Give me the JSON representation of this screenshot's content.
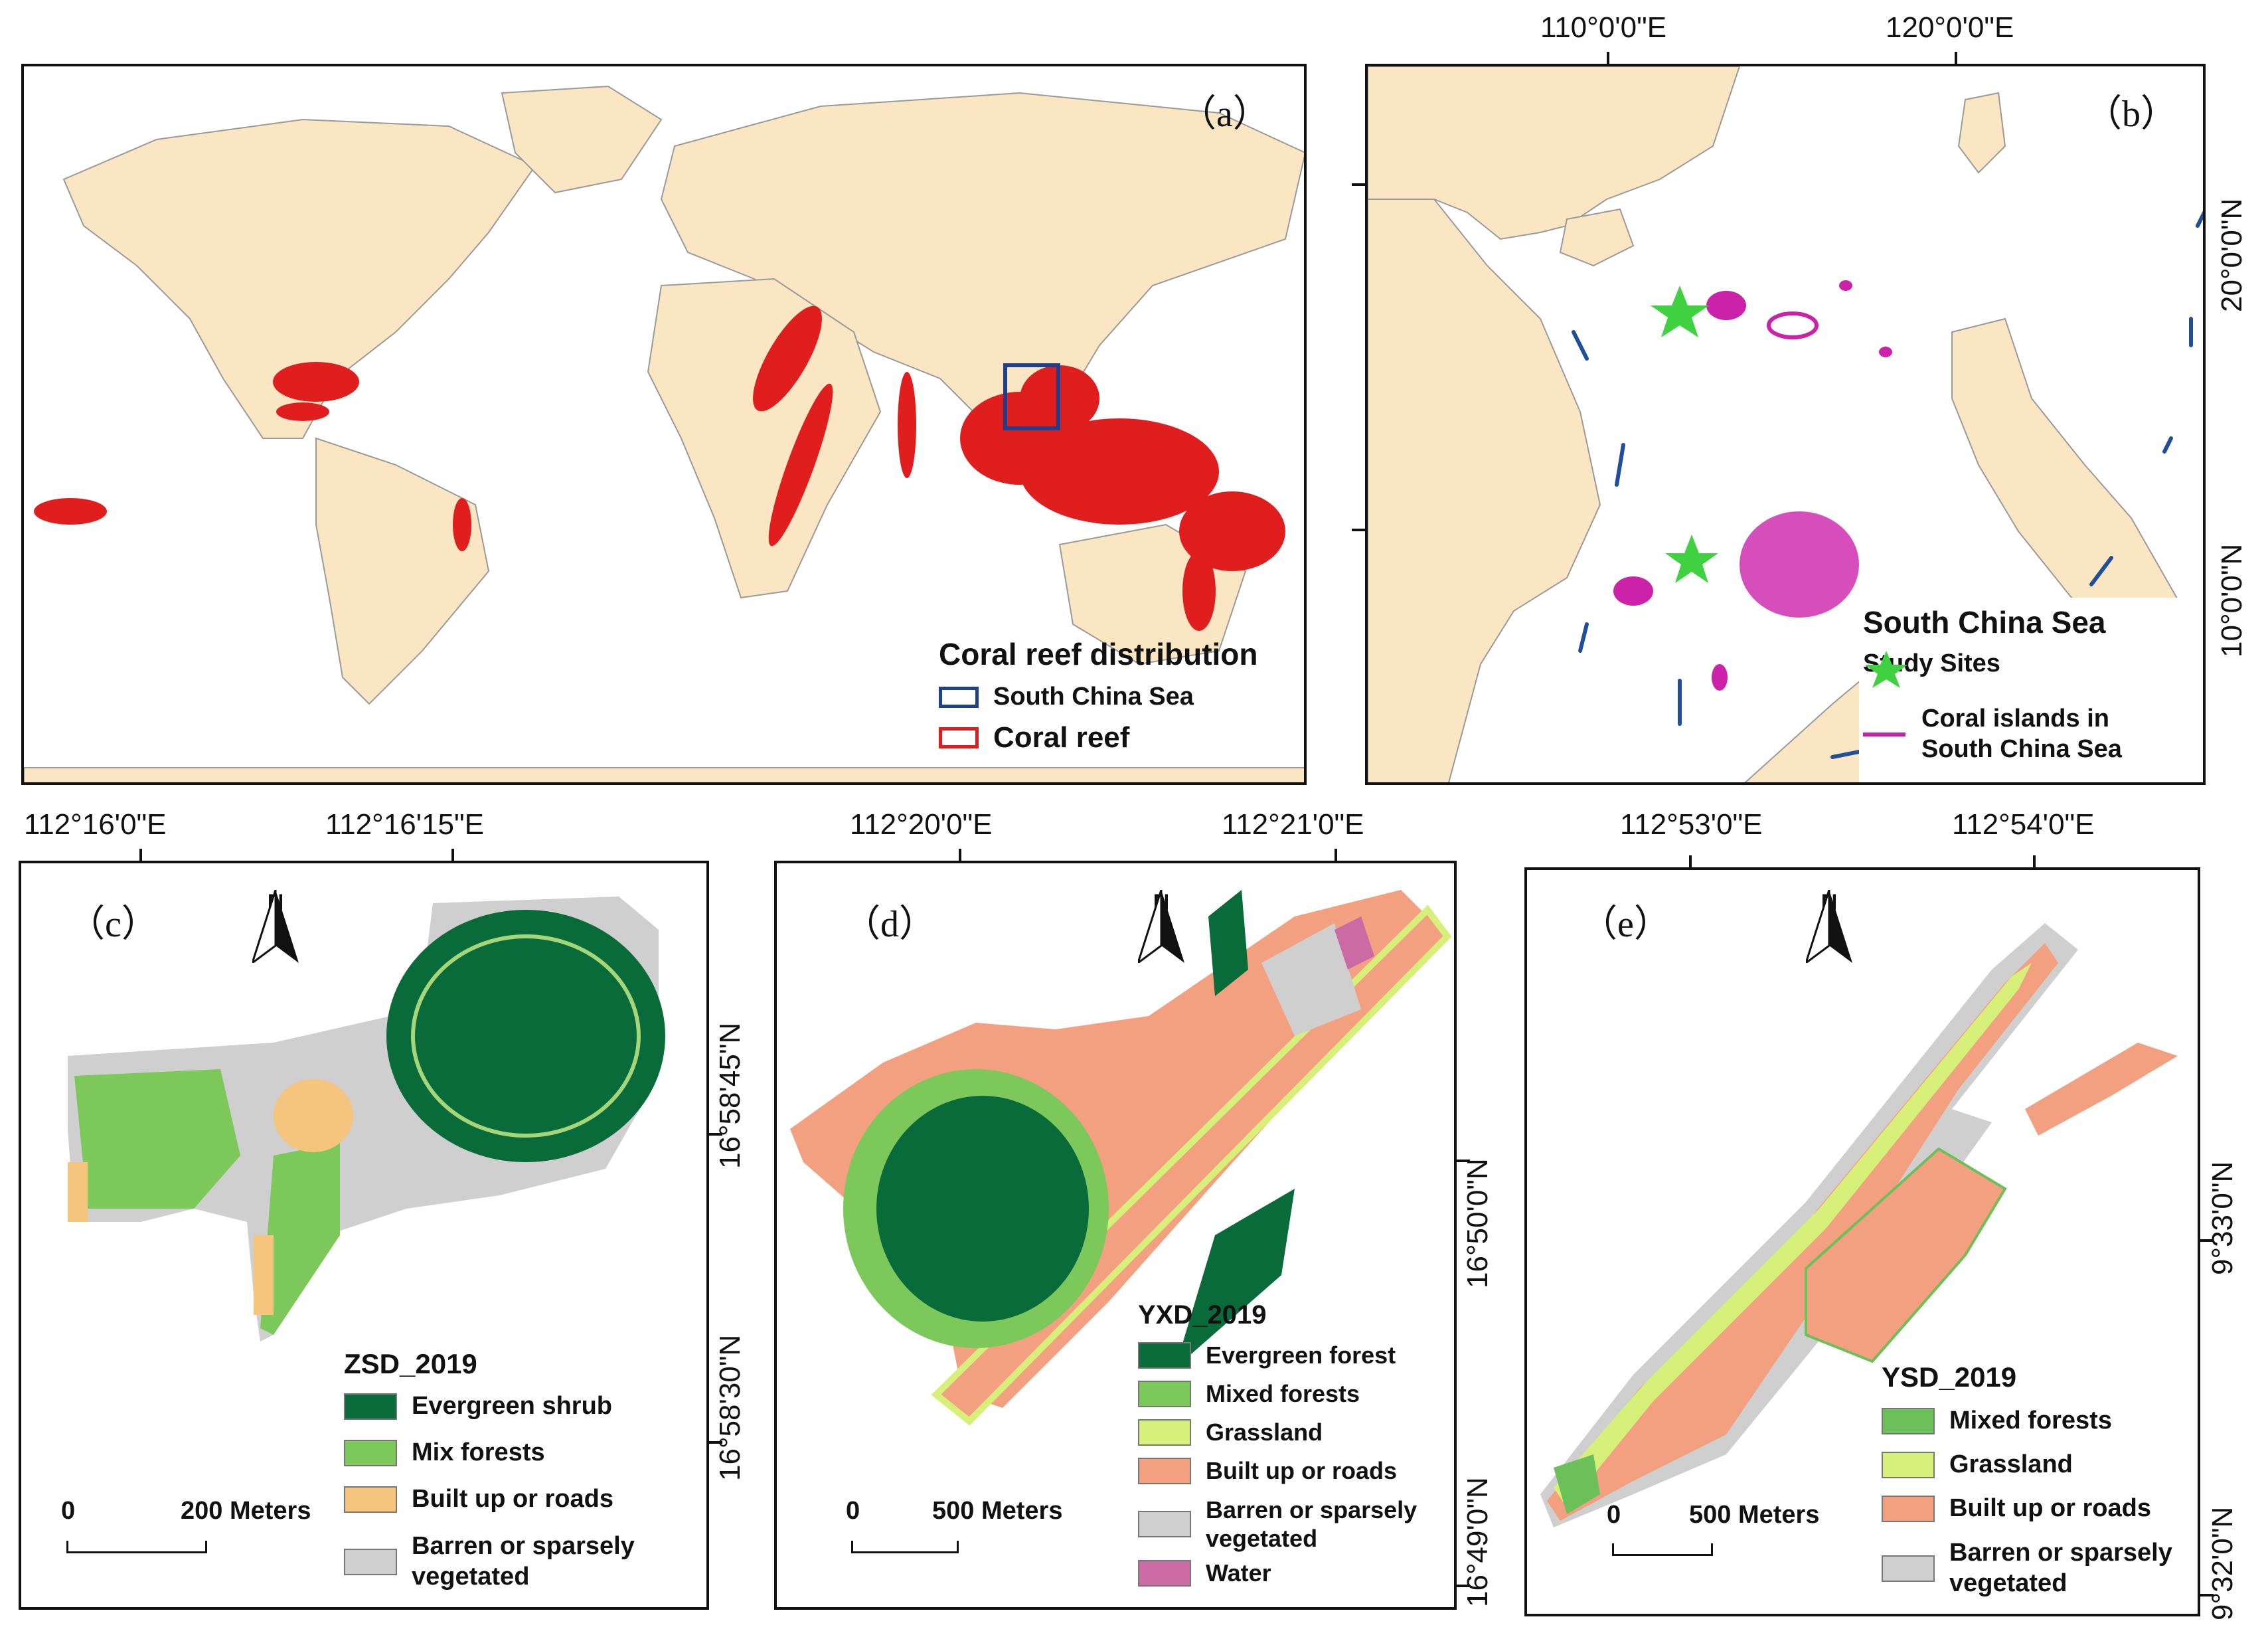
{
  "panel_a": {
    "label": "（a）",
    "legend": {
      "title": "Coral reef distribution",
      "items": [
        {
          "label": "South China Sea",
          "color": "#1f3f8f"
        },
        {
          "label": "Coral reef",
          "color": "#e01e1e"
        }
      ]
    }
  },
  "panel_b": {
    "label": "（b）",
    "top_lon": [
      "110°0'0\"E",
      "120°0'0\"E"
    ],
    "right_lat": [
      "20°0'0\"N",
      "10°0'0\"N"
    ],
    "legend": {
      "title": "South China Sea",
      "items": [
        {
          "label": "Study Sites",
          "color": "#3fd13f",
          "icon": "star-icon"
        },
        {
          "label": "Coral islands in",
          "label2": "South China Sea",
          "color": "#cc22aa"
        }
      ]
    }
  },
  "panel_c": {
    "label": "（c）",
    "top_lon": [
      "112°16'0\"E",
      "112°16'15\"E"
    ],
    "right_lat": [
      "16°58'45\"N",
      "16°58'30\"N"
    ],
    "north": "N",
    "scale": {
      "zero": "0",
      "length": "200 Meters"
    },
    "legend": {
      "title": "ZSD_2019",
      "items": [
        {
          "label": "Evergreen shrub",
          "color": "#0a6b3a"
        },
        {
          "label": "Mix forests",
          "color": "#7dc85a"
        },
        {
          "label": "Built up or roads",
          "color": "#f5c47d"
        },
        {
          "label": "Barren or sparsely",
          "label2": "vegetated",
          "color": "#cfcfcf"
        }
      ]
    }
  },
  "panel_d": {
    "label": "（d）",
    "top_lon": [
      "112°20'0\"E",
      "112°21'0\"E"
    ],
    "right_lat": [
      "16°50'0\"N",
      "16°49'0\"N"
    ],
    "north": "N",
    "scale": {
      "zero": "0",
      "length": "500 Meters"
    },
    "legend": {
      "title": "YXD_2019",
      "items": [
        {
          "label": "Evergreen forest",
          "color": "#0a6b3a"
        },
        {
          "label": "Mixed forests",
          "color": "#7dc85a"
        },
        {
          "label": "Grassland",
          "color": "#d7f07a"
        },
        {
          "label": "Built up or roads",
          "color": "#f2a07f"
        },
        {
          "label": "Barren or sparsely",
          "label2": "vegetated",
          "color": "#cfcfcf"
        },
        {
          "label": "Water",
          "color": "#cc6aa6"
        }
      ]
    }
  },
  "panel_e": {
    "label": "（e）",
    "top_lon": [
      "112°53'0\"E",
      "112°54'0\"E"
    ],
    "right_lat": [
      "9°33'0\"N",
      "9°32'0\"N"
    ],
    "north": "N",
    "scale": {
      "zero": "0",
      "length": "500 Meters"
    },
    "legend": {
      "title": "YSD_2019",
      "items": [
        {
          "label": "Mixed forests",
          "color": "#6cc05a"
        },
        {
          "label": "Grassland",
          "color": "#d7f07a"
        },
        {
          "label": "Built up or roads",
          "color": "#f2a07f"
        },
        {
          "label": "Barren or sparsely",
          "label2": "vegetated",
          "color": "#cfcfcf"
        }
      ]
    }
  }
}
